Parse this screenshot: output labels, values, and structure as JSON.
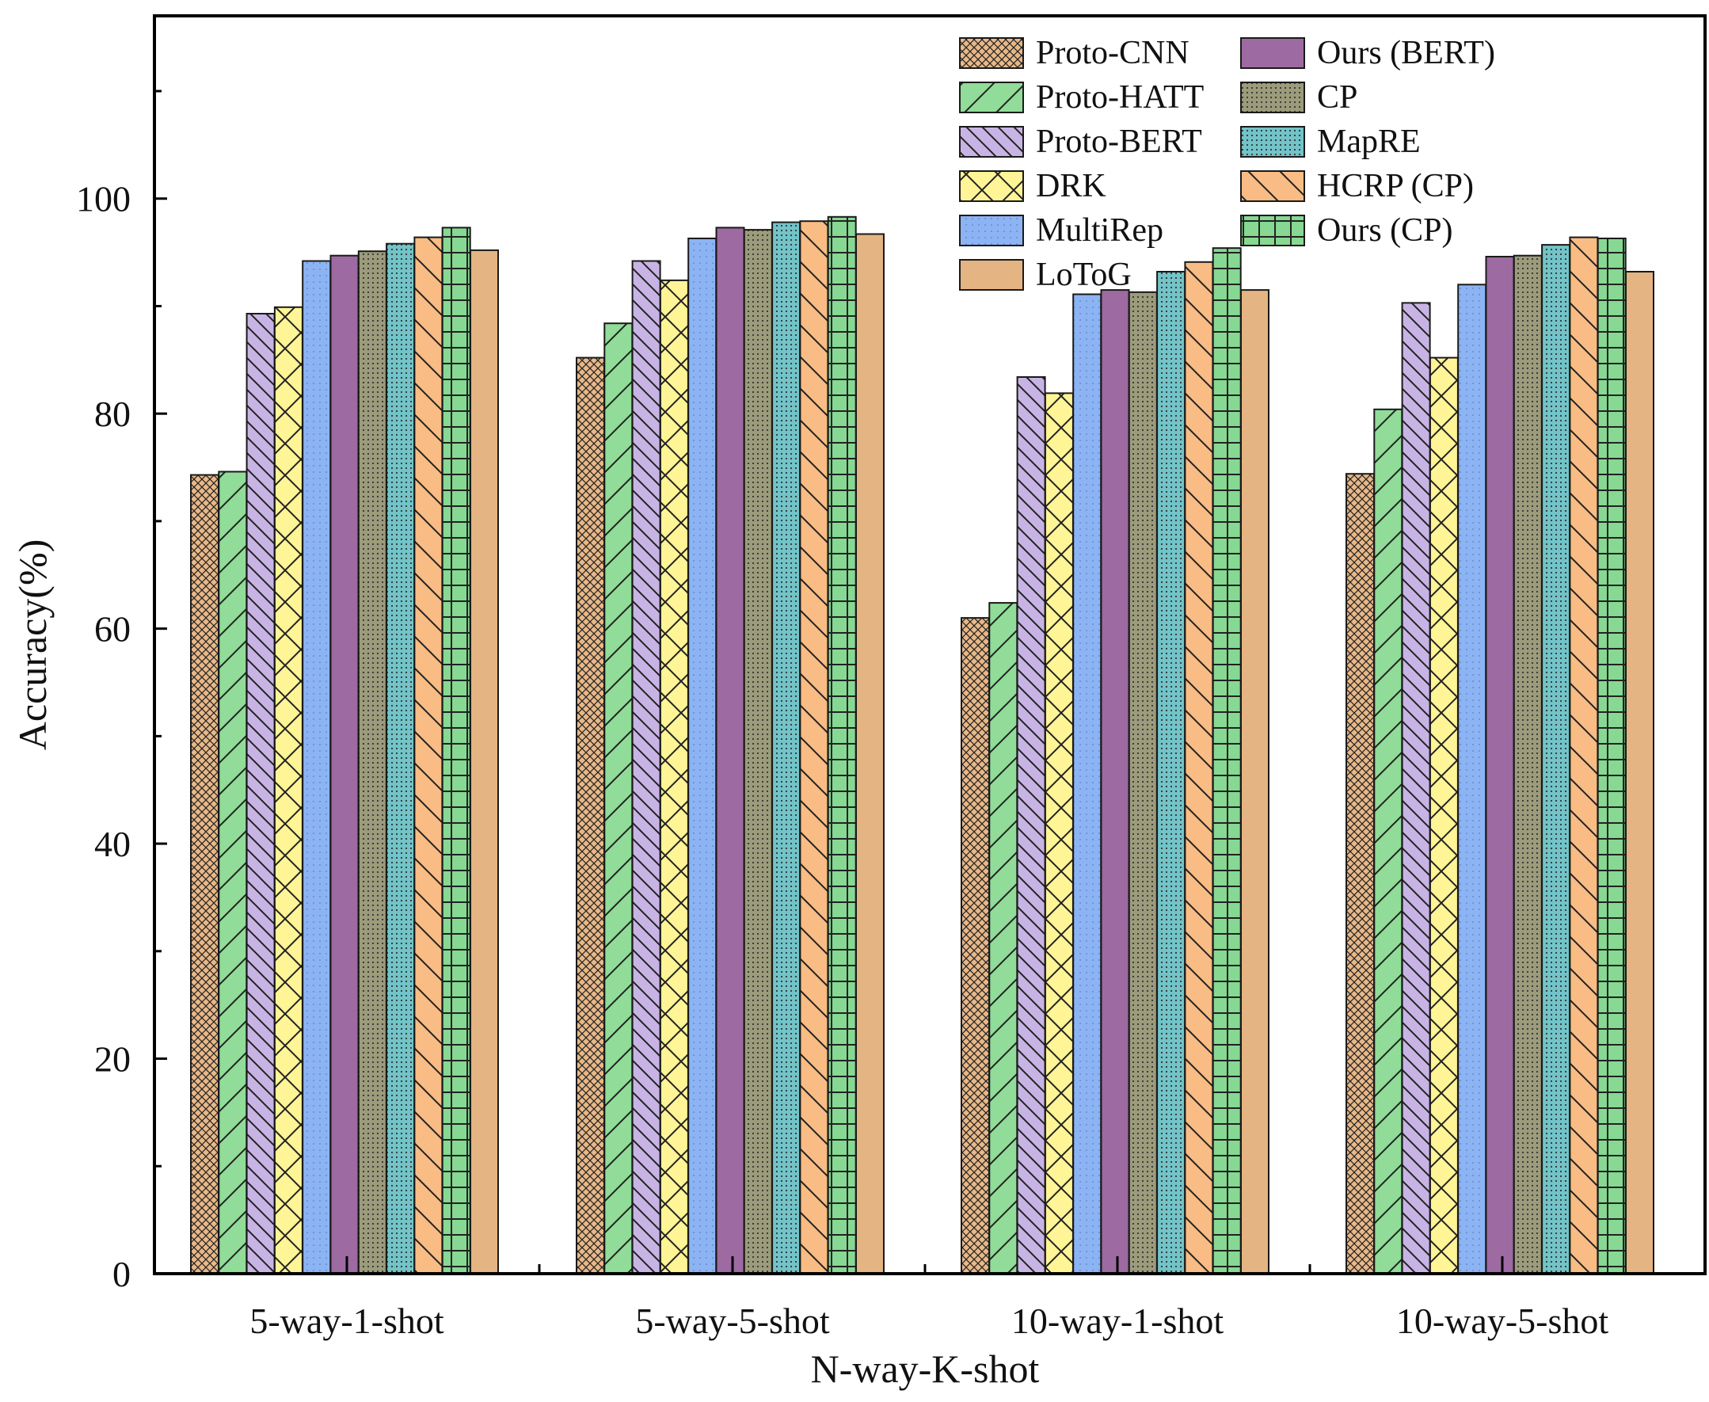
{
  "chart_data": {
    "type": "bar",
    "title": "",
    "xlabel": "N-way-K-shot",
    "ylabel": "Accuracy(%)",
    "ylim": [
      0,
      117
    ],
    "yticks": [
      0,
      20,
      40,
      60,
      80,
      100
    ],
    "yticks_labels": [
      "0",
      "20",
      "40",
      "60",
      "80",
      "100"
    ],
    "grid": false,
    "legend_position": "top-right",
    "categories": [
      "5-way-1-shot",
      "5-way-5-shot",
      "10-way-1-shot",
      "10-way-5-shot"
    ],
    "series": [
      {
        "name": "Proto-CNN",
        "values": [
          74.3,
          85.2,
          61.0,
          74.4
        ],
        "color": "#e8b888",
        "pattern": "crosshatch-dense"
      },
      {
        "name": "Proto-HATT",
        "values": [
          74.6,
          88.4,
          62.4,
          80.4
        ],
        "color": "#90dc98",
        "pattern": "slash"
      },
      {
        "name": "Proto-BERT",
        "values": [
          89.3,
          94.2,
          83.4,
          90.3
        ],
        "color": "#c8b4e4",
        "pattern": "backslash-dense"
      },
      {
        "name": "DRK",
        "values": [
          89.9,
          92.4,
          81.9,
          85.2
        ],
        "color": "#fff496",
        "pattern": "crosshatch"
      },
      {
        "name": "MultiRep",
        "values": [
          94.2,
          96.3,
          91.1,
          92.0
        ],
        "color": "#8cb4f4",
        "pattern": "dots-fine"
      },
      {
        "name": "LoToG",
        "values": [
          95.2,
          96.7,
          91.5,
          93.2
        ],
        "color": "#e4b482",
        "pattern": "none"
      },
      {
        "name": "Ours (BERT)",
        "values": [
          94.7,
          97.3,
          91.5,
          94.6
        ],
        "color": "#9e6aa2",
        "pattern": "none"
      },
      {
        "name": "CP",
        "values": [
          95.1,
          97.1,
          91.3,
          94.7
        ],
        "color": "#9c9c7c",
        "pattern": "dots"
      },
      {
        "name": "MapRE",
        "values": [
          95.8,
          97.8,
          93.2,
          95.7
        ],
        "color": "#72c4c8",
        "pattern": "dots"
      },
      {
        "name": "HCRP (CP)",
        "values": [
          96.4,
          97.9,
          94.1,
          96.4
        ],
        "color": "#f8bc84",
        "pattern": "backslash"
      },
      {
        "name": "Ours (CP)",
        "values": [
          97.3,
          98.3,
          95.4,
          96.3
        ],
        "color": "#86d892",
        "pattern": "grid"
      }
    ]
  }
}
